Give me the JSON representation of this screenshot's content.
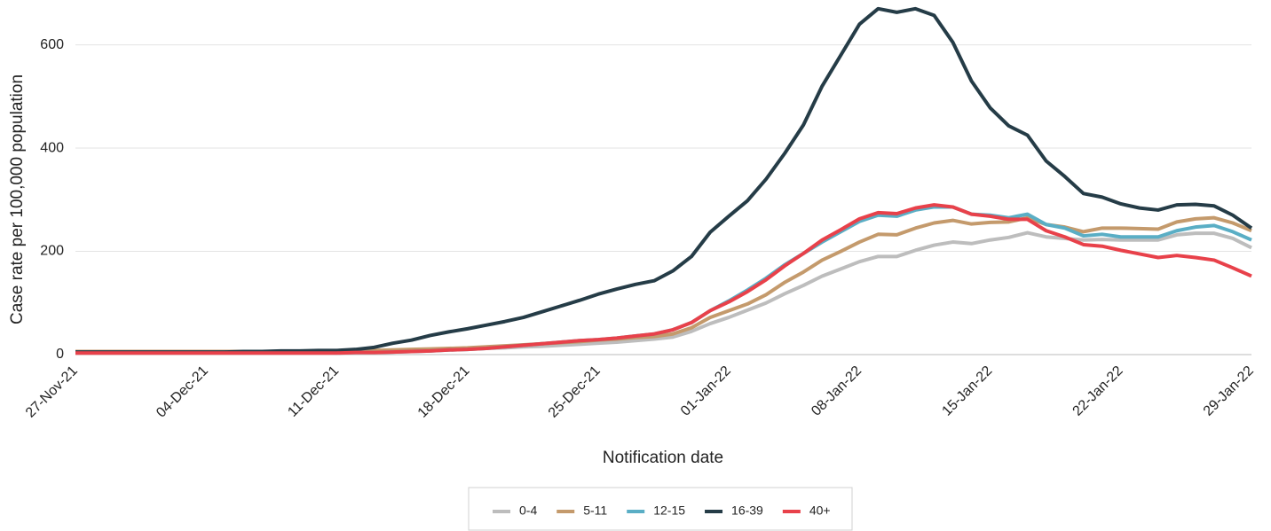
{
  "chart_data": {
    "type": "line",
    "x_label": "Notification date",
    "y_label": "Case rate per 100,000 population",
    "categories": [
      "27-Nov-21",
      null,
      null,
      null,
      null,
      null,
      null,
      "04-Dec-21",
      null,
      null,
      null,
      null,
      null,
      null,
      "11-Dec-21",
      null,
      null,
      null,
      null,
      null,
      null,
      "18-Dec-21",
      null,
      null,
      null,
      null,
      null,
      null,
      "25-Dec-21",
      null,
      null,
      null,
      null,
      null,
      null,
      "01-Jan-22",
      null,
      null,
      null,
      null,
      null,
      null,
      "08-Jan-22",
      null,
      null,
      null,
      null,
      null,
      null,
      "15-Jan-22",
      null,
      null,
      null,
      null,
      null,
      null,
      "22-Jan-22",
      null,
      null,
      null,
      null,
      null,
      null,
      "29-Jan-22"
    ],
    "ylim": [
      0,
      680
    ],
    "yticks": [
      0,
      200,
      400,
      600
    ],
    "grid": true,
    "legend": "bottom",
    "series": [
      {
        "name": "0-4",
        "color": "#bdbdbd",
        "values": [
          5,
          5,
          5,
          5,
          5,
          5,
          5,
          5,
          5,
          5,
          5,
          5,
          5,
          5,
          5,
          5,
          6,
          7,
          8,
          9,
          10,
          11,
          12,
          13,
          15,
          16,
          18,
          20,
          22,
          24,
          27,
          30,
          34,
          45,
          60,
          72,
          86,
          100,
          118,
          134,
          152,
          166,
          180,
          190,
          190,
          202,
          212,
          218,
          215,
          222,
          227,
          236,
          228,
          225,
          222,
          223,
          222,
          222,
          222,
          232,
          235,
          235,
          225,
          207
        ]
      },
      {
        "name": "5-11",
        "color": "#c49a6c",
        "values": [
          6,
          6,
          6,
          6,
          6,
          6,
          6,
          6,
          6,
          6,
          6,
          6,
          6,
          6,
          6,
          7,
          8,
          9,
          10,
          11,
          12,
          13,
          15,
          17,
          19,
          21,
          23,
          25,
          28,
          30,
          33,
          35,
          40,
          52,
          72,
          85,
          98,
          116,
          140,
          160,
          183,
          200,
          218,
          233,
          232,
          245,
          255,
          260,
          253,
          256,
          257,
          265,
          252,
          247,
          238,
          245,
          245,
          244,
          243,
          257,
          263,
          265,
          255,
          240
        ]
      },
      {
        "name": "12-15",
        "color": "#5aaec5",
        "values": [
          4,
          4,
          4,
          4,
          4,
          4,
          4,
          4,
          4,
          4,
          4,
          4,
          4,
          4,
          3,
          4,
          4,
          5,
          6,
          7,
          9,
          10,
          12,
          15,
          18,
          21,
          24,
          27,
          29,
          32,
          36,
          40,
          48,
          62,
          85,
          104,
          125,
          148,
          174,
          196,
          218,
          238,
          258,
          270,
          268,
          280,
          286,
          286,
          272,
          270,
          265,
          272,
          252,
          245,
          230,
          233,
          228,
          228,
          228,
          240,
          247,
          250,
          238,
          222
        ]
      },
      {
        "name": "16-39",
        "color": "#253c47",
        "values": [
          5,
          5,
          5,
          5,
          5,
          5,
          5,
          5,
          5,
          6,
          6,
          7,
          7,
          8,
          8,
          10,
          14,
          22,
          28,
          37,
          44,
          50,
          57,
          64,
          72,
          83,
          94,
          105,
          117,
          127,
          136,
          143,
          162,
          190,
          237,
          268,
          298,
          340,
          390,
          445,
          520,
          580,
          640,
          670,
          663,
          670,
          657,
          605,
          530,
          478,
          443,
          425,
          375,
          345,
          312,
          305,
          292,
          284,
          280,
          290,
          291,
          288,
          270,
          245
        ]
      },
      {
        "name": "40+",
        "color": "#e8414a",
        "values": [
          3,
          3,
          3,
          3,
          3,
          3,
          3,
          3,
          3,
          3,
          3,
          3,
          3,
          3,
          3,
          4,
          4,
          5,
          6,
          7,
          9,
          10,
          12,
          15,
          18,
          21,
          24,
          27,
          29,
          32,
          36,
          40,
          48,
          62,
          85,
          102,
          122,
          145,
          172,
          196,
          222,
          242,
          263,
          275,
          273,
          284,
          290,
          286,
          272,
          268,
          262,
          262,
          240,
          228,
          213,
          210,
          202,
          195,
          188,
          192,
          188,
          183,
          168,
          152
        ]
      }
    ]
  }
}
